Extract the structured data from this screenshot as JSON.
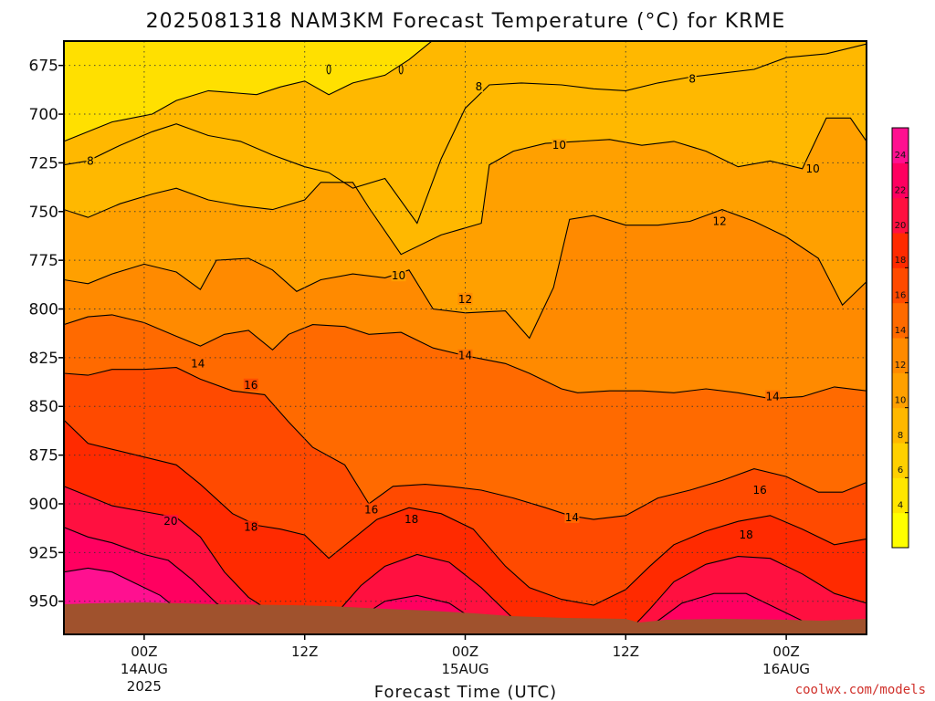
{
  "chart_data": {
    "type": "heatmap",
    "title": "2025081318 NAM3KM Forecast Temperature (°C) for KRME",
    "xlabel": "Forecast Time (UTC)",
    "ylabel": "",
    "y_axis_reversed": true,
    "y_ticks": [
      675,
      700,
      725,
      750,
      775,
      800,
      825,
      850,
      875,
      900,
      925,
      950
    ],
    "x_ticks": [
      {
        "lines": [
          "00Z",
          "14AUG",
          "2025"
        ]
      },
      {
        "lines": [
          "12Z"
        ]
      },
      {
        "lines": [
          "00Z",
          "15AUG"
        ]
      },
      {
        "lines": [
          "12Z"
        ]
      },
      {
        "lines": [
          "00Z",
          "16AUG"
        ]
      }
    ],
    "colorbar": {
      "levels": [
        4,
        6,
        8,
        10,
        12,
        14,
        16,
        18,
        20,
        22,
        24
      ],
      "colors": [
        "#ffff00",
        "#ffe600",
        "#ffd000",
        "#ffb800",
        "#ffa000",
        "#ff8a00",
        "#ff6a00",
        "#ff4a00",
        "#ff2a00",
        "#ff1040",
        "#ff0060",
        "#ff1090"
      ]
    },
    "contour_labels": [
      {
        "text": "8",
        "t": 0.033,
        "p": 724
      },
      {
        "text": "8",
        "t": 0.517,
        "p": 686
      },
      {
        "text": "8",
        "t": 0.783,
        "p": 682
      },
      {
        "text": "10",
        "t": 0.617,
        "p": 716
      },
      {
        "text": "10",
        "t": 0.933,
        "p": 728
      },
      {
        "text": "10",
        "t": 0.417,
        "p": 783
      },
      {
        "text": "12",
        "t": 0.817,
        "p": 755
      },
      {
        "text": "12",
        "t": 0.5,
        "p": 795
      },
      {
        "text": "14",
        "t": 0.167,
        "p": 828
      },
      {
        "text": "14",
        "t": 0.5,
        "p": 824
      },
      {
        "text": "14",
        "t": 0.883,
        "p": 845
      },
      {
        "text": "14",
        "t": 0.633,
        "p": 907
      },
      {
        "text": "16",
        "t": 0.233,
        "p": 839
      },
      {
        "text": "16",
        "t": 0.383,
        "p": 903
      },
      {
        "text": "16",
        "t": 0.867,
        "p": 893
      },
      {
        "text": "18",
        "t": 0.233,
        "p": 912
      },
      {
        "text": "18",
        "t": 0.433,
        "p": 908
      },
      {
        "text": "18",
        "t": 0.85,
        "p": 916
      },
      {
        "text": "20",
        "t": 0.133,
        "p": 909
      }
    ],
    "lows": [
      {
        "t": 0.33,
        "p": 677
      },
      {
        "t": 0.42,
        "p": 677
      }
    ],
    "grid": true,
    "colors": {
      "ground": "#a0522d",
      "gridline": "#333333"
    }
  },
  "credit": "coolwx.com/models"
}
